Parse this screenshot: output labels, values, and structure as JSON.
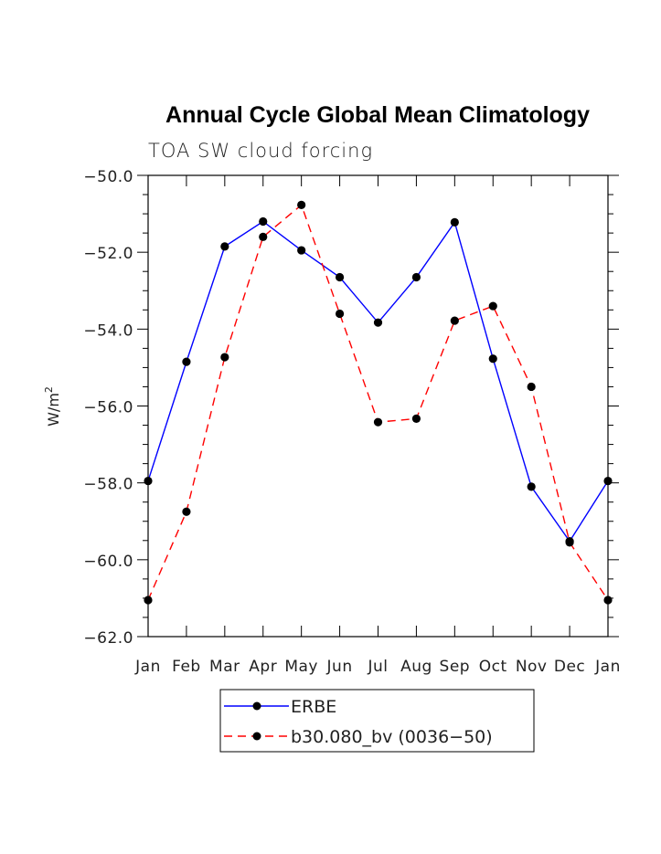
{
  "chart_data": {
    "type": "line",
    "title": "Annual Cycle Global Mean Climatology",
    "subtitle": "TOA SW cloud forcing",
    "xlabel": "",
    "ylabel_base": "W/m",
    "ylabel_sup": "2",
    "categories": [
      "Jan",
      "Feb",
      "Mar",
      "Apr",
      "May",
      "Jun",
      "Jul",
      "Aug",
      "Sep",
      "Oct",
      "Nov",
      "Dec",
      "Jan"
    ],
    "ylim": [
      -62.0,
      -50.0
    ],
    "yticks": [
      -62.0,
      -60.0,
      -58.0,
      -56.0,
      -54.0,
      -52.0,
      -50.0
    ],
    "ytick_labels": [
      "−62.0",
      "−60.0",
      "−58.0",
      "−56.0",
      "−54.0",
      "−52.0",
      "−50.0"
    ],
    "series": [
      {
        "name": "ERBE",
        "color": "#0000ff",
        "dash": "solid",
        "values": [
          -57.95,
          -54.85,
          -51.85,
          -51.2,
          -51.95,
          -52.65,
          -53.83,
          -52.65,
          -51.22,
          -54.77,
          -58.1,
          -59.52,
          -57.95
        ]
      },
      {
        "name": "b30.080_bv (0036−50)",
        "color": "#ff0000",
        "dash": "dashed",
        "values": [
          -61.05,
          -58.75,
          -54.73,
          -51.6,
          -50.77,
          -53.6,
          -56.42,
          -56.33,
          -53.78,
          -53.4,
          -55.5,
          -59.55,
          -61.05
        ]
      }
    ],
    "legend": "bottom-center"
  }
}
